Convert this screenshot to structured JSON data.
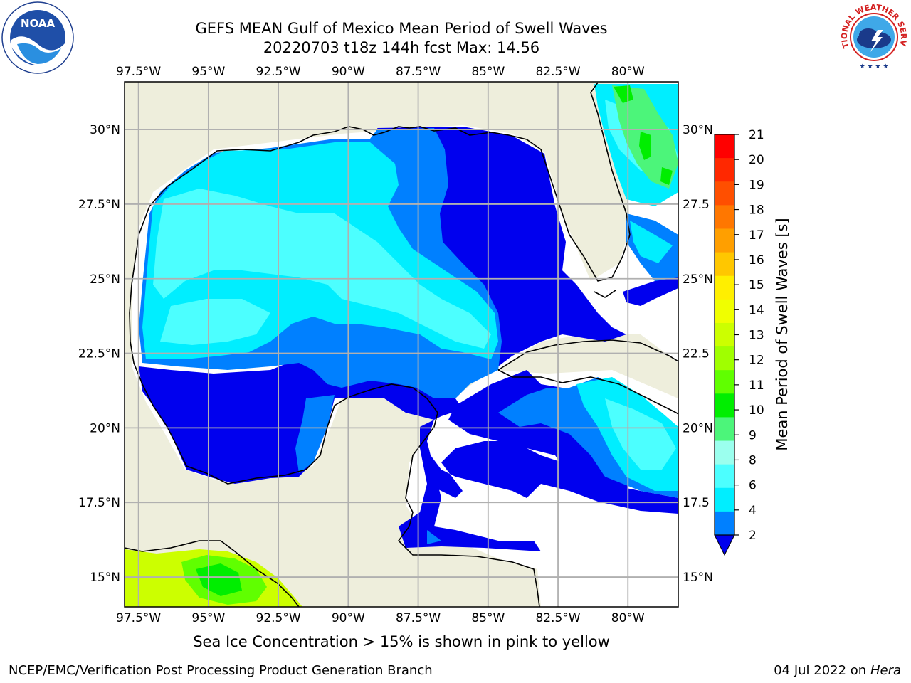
{
  "title": {
    "line1": "GEFS MEAN Gulf of Mexico Mean Period of Swell Waves",
    "line2": "20220703 t18z 144h fcst   Max: 14.56"
  },
  "axes": {
    "lon_labels": [
      "97.5°W",
      "95°W",
      "92.5°W",
      "90°W",
      "87.5°W",
      "85°W",
      "82.5°W",
      "80°W"
    ],
    "lon_values": [
      -97.5,
      -95,
      -92.5,
      -90,
      -87.5,
      -85,
      -82.5,
      -80
    ],
    "lat_labels": [
      "30°N",
      "27.5°N",
      "25°N",
      "22.5°N",
      "20°N",
      "17.5°N",
      "15°N"
    ],
    "lat_values_left": [
      30,
      27.5,
      25,
      22.5,
      20,
      17.5,
      15
    ],
    "right_lat_labels": [
      "30°N",
      "27.5",
      "25°N",
      "22.5",
      "20°N",
      "17.5",
      "15°N"
    ],
    "lon_range": [
      -98,
      -78.2
    ],
    "lat_range": [
      14,
      31.6
    ]
  },
  "colorbar": {
    "label": "Mean Period of Swell Waves [s]",
    "ticks": [
      "21",
      "20",
      "19",
      "18",
      "17",
      "16",
      "15",
      "14",
      "13",
      "12",
      "11",
      "10",
      "9",
      "8",
      "6",
      "4",
      "2"
    ],
    "colors": [
      "#ff0000",
      "#ff2800",
      "#ff4f00",
      "#ff7700",
      "#ff9f00",
      "#ffc700",
      "#ffef00",
      "#f0ff00",
      "#ccff00",
      "#a0ff00",
      "#60ff00",
      "#00ee00",
      "#4cf57a",
      "#9bffee",
      "#4cffff",
      "#00eeff",
      "#0080ff"
    ],
    "extend_color": "#0000ee"
  },
  "colors": {
    "land": "#eeeedc",
    "ocean_no_data": "#ffffff",
    "coast": "#000000",
    "grid": "#b0b0b0",
    "swell_2_4": "#0000ee",
    "swell_4_6": "#0080ff",
    "swell_6_8": "#00eeff",
    "swell_8_9": "#4cffff",
    "swell_9_10": "#4cf57a",
    "swell_10_11": "#00ee00",
    "swell_12_13": "#ccff00"
  },
  "footer": {
    "sea_ice_note": "Sea Ice Concentration > 15% is shown in pink to yellow",
    "left": "NCEP/EMC/Verification Post Processing Product Generation Branch",
    "right_prefix": "04 Jul 2022 on ",
    "right_host": "Hera"
  },
  "logos": {
    "left": "noaa-logo",
    "right": "nws-logo",
    "nws_text": "NATIONAL WEATHER SERVICE"
  }
}
